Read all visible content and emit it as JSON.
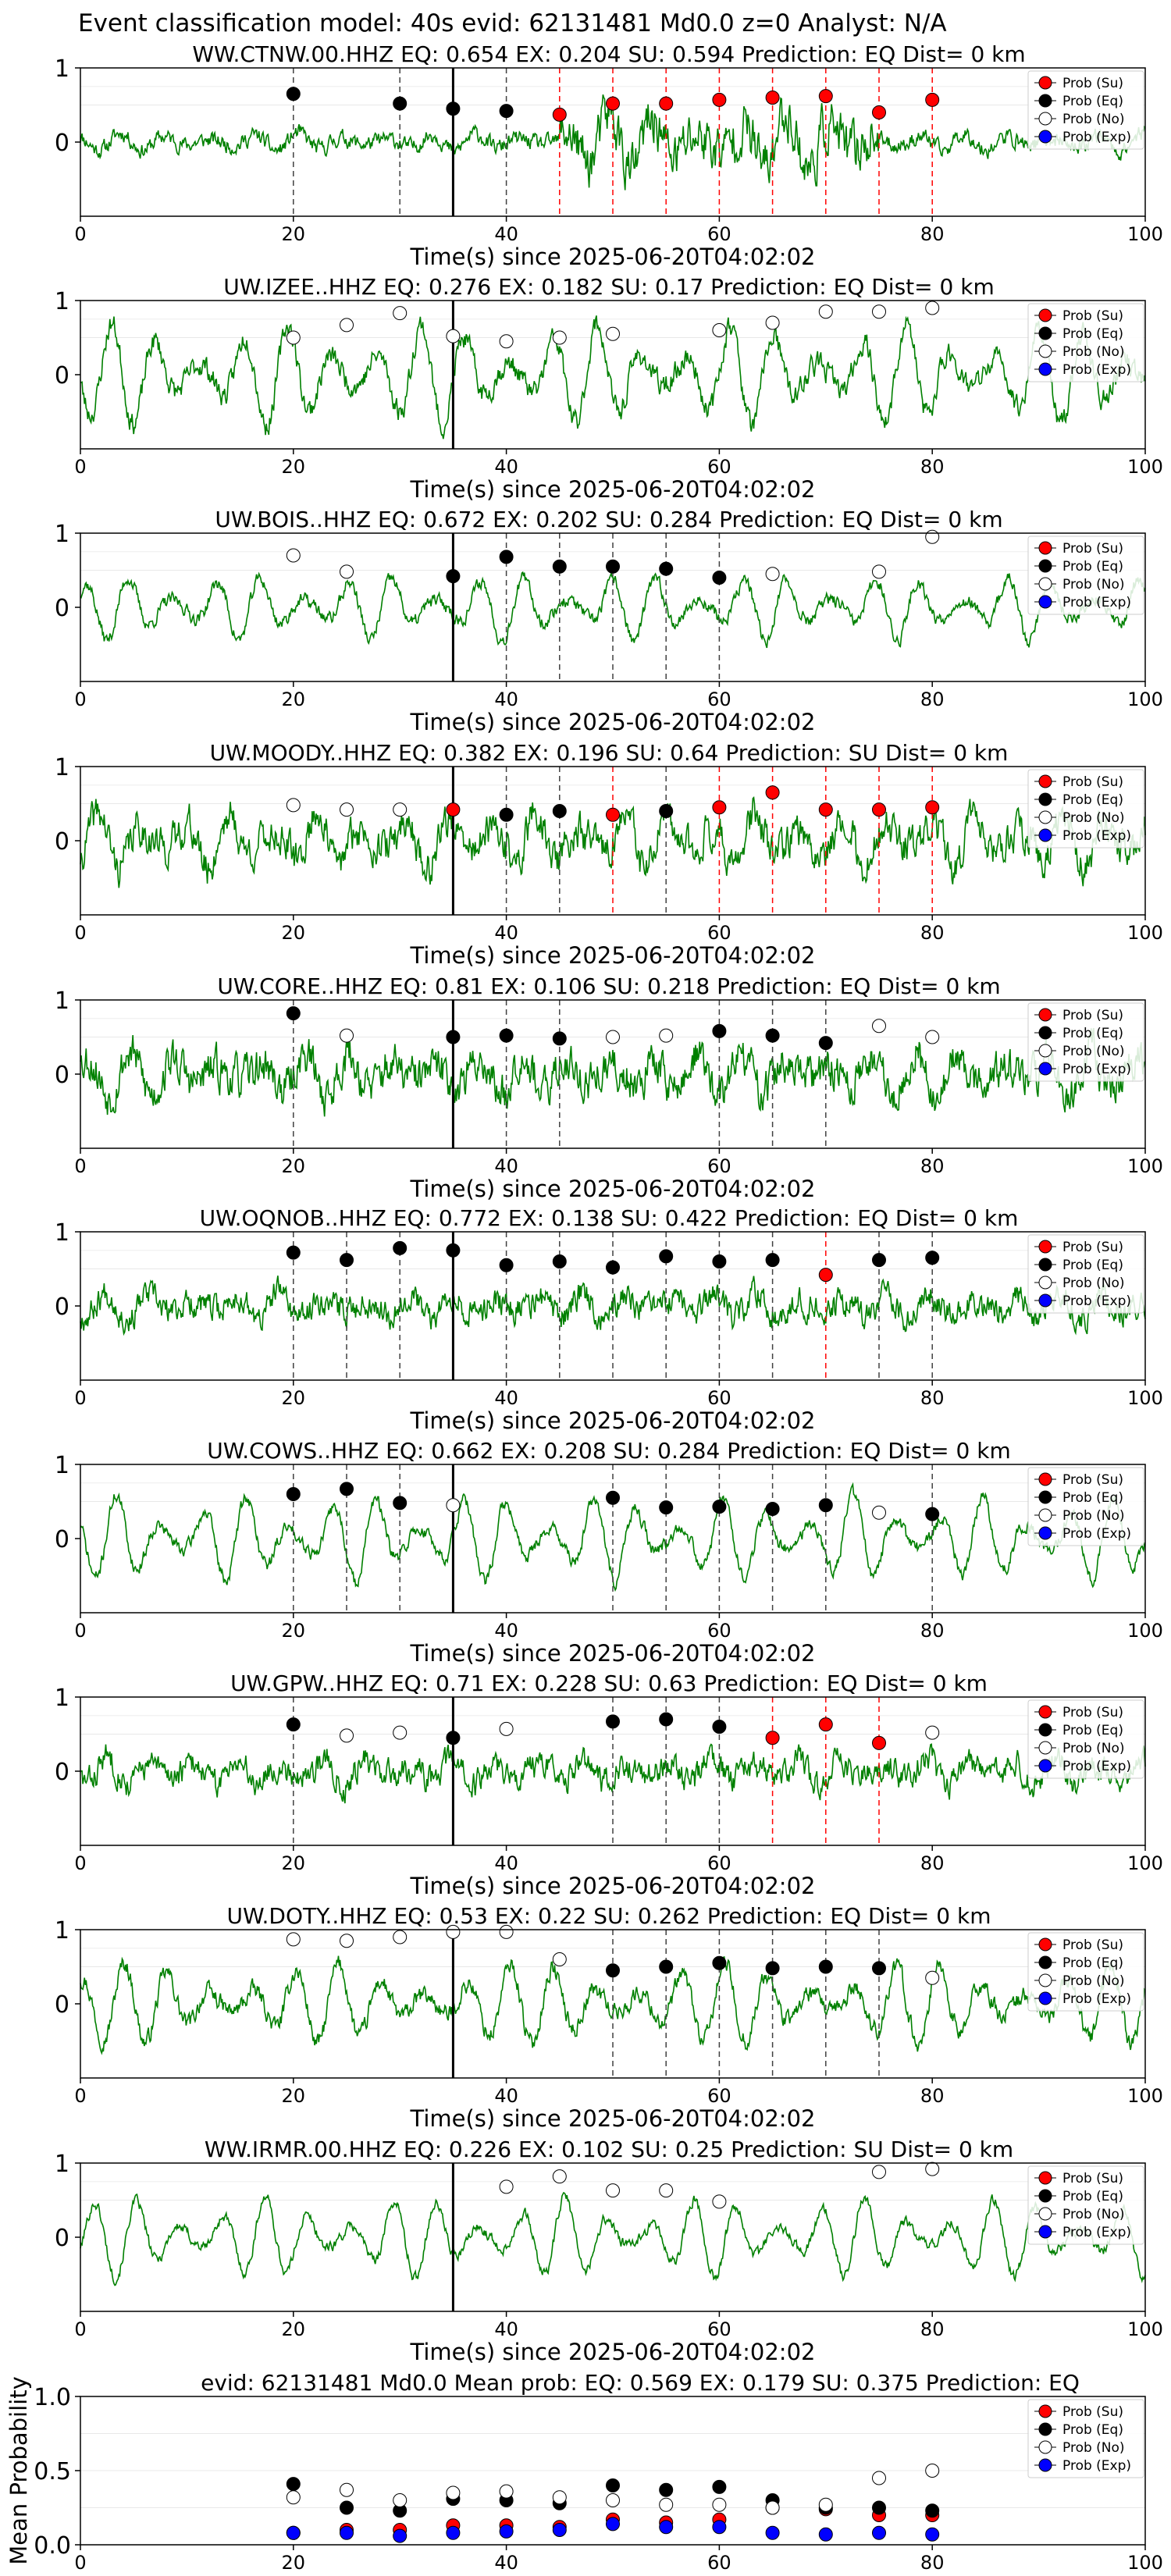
{
  "suptitle": "Event classification model: 40s evid: 62131481 Md0.0 z=0 Analyst: N/A",
  "x_label": "Time(s) since 2025-06-20T04:02:02",
  "x_ticks": [
    "0",
    "20",
    "40",
    "60",
    "80",
    "100"
  ],
  "y_ticks": [
    "0",
    "1"
  ],
  "legend": [
    "Prob (Su)",
    "Prob (Eq)",
    "Prob (No)",
    "Prob (Exp)"
  ],
  "colors": {
    "su": "#ff0000",
    "eq": "#000000",
    "no": "#ffffff",
    "exp": "#0000ff",
    "waveform": "#008000",
    "su_line": "#ff0000",
    "eq_line": "#404040"
  },
  "chart_data": [
    {
      "type": "line",
      "title": "WW.CTNW.00.HHZ   EQ: 0.654  EX: 0.204  SU: 0.594   Prediction: EQ    Dist= 0 km",
      "xlim": [
        0,
        100
      ],
      "ylim": [
        -1,
        1
      ],
      "pick_time": 35,
      "seed": 11,
      "amp": 0.25,
      "noise": 0.35,
      "points": [
        {
          "x": 20,
          "y": 0.65,
          "class": "eq"
        },
        {
          "x": 30,
          "y": 0.52,
          "class": "eq"
        },
        {
          "x": 35,
          "y": 0.45,
          "class": "eq"
        },
        {
          "x": 40,
          "y": 0.42,
          "class": "eq"
        },
        {
          "x": 45,
          "y": 0.37,
          "class": "su"
        },
        {
          "x": 50,
          "y": 0.52,
          "class": "su"
        },
        {
          "x": 55,
          "y": 0.52,
          "class": "su"
        },
        {
          "x": 60,
          "y": 0.57,
          "class": "su"
        },
        {
          "x": 65,
          "y": 0.6,
          "class": "su"
        },
        {
          "x": 70,
          "y": 0.62,
          "class": "su"
        },
        {
          "x": 75,
          "y": 0.4,
          "class": "su"
        },
        {
          "x": 80,
          "y": 0.57,
          "class": "su"
        }
      ]
    },
    {
      "type": "line",
      "title": "UW.IZEE..HHZ   EQ: 0.276  EX: 0.182  SU: 0.17   Prediction: EQ    Dist= 0 km",
      "xlim": [
        0,
        100
      ],
      "ylim": [
        -1,
        1
      ],
      "pick_time": 35,
      "seed": 23,
      "amp": 0.7,
      "noise": 0.25,
      "points": [
        {
          "x": 20,
          "y": 0.5,
          "class": "no"
        },
        {
          "x": 25,
          "y": 0.67,
          "class": "no"
        },
        {
          "x": 30,
          "y": 0.83,
          "class": "no"
        },
        {
          "x": 35,
          "y": 0.52,
          "class": "no"
        },
        {
          "x": 40,
          "y": 0.45,
          "class": "no"
        },
        {
          "x": 45,
          "y": 0.5,
          "class": "no"
        },
        {
          "x": 50,
          "y": 0.55,
          "class": "no"
        },
        {
          "x": 60,
          "y": 0.6,
          "class": "no"
        },
        {
          "x": 65,
          "y": 0.7,
          "class": "no"
        },
        {
          "x": 70,
          "y": 0.85,
          "class": "no"
        },
        {
          "x": 75,
          "y": 0.85,
          "class": "no"
        },
        {
          "x": 80,
          "y": 0.9,
          "class": "no"
        }
      ]
    },
    {
      "type": "line",
      "title": "UW.BOIS..HHZ   EQ: 0.672  EX: 0.202  SU: 0.284   Prediction: EQ    Dist= 0 km",
      "xlim": [
        0,
        100
      ],
      "ylim": [
        -1,
        1
      ],
      "pick_time": 35,
      "seed": 37,
      "amp": 0.45,
      "noise": 0.15,
      "points": [
        {
          "x": 20,
          "y": 0.7,
          "class": "no"
        },
        {
          "x": 25,
          "y": 0.48,
          "class": "no"
        },
        {
          "x": 35,
          "y": 0.42,
          "class": "eq"
        },
        {
          "x": 40,
          "y": 0.68,
          "class": "eq"
        },
        {
          "x": 45,
          "y": 0.55,
          "class": "eq"
        },
        {
          "x": 50,
          "y": 0.55,
          "class": "eq"
        },
        {
          "x": 55,
          "y": 0.52,
          "class": "eq"
        },
        {
          "x": 60,
          "y": 0.4,
          "class": "eq"
        },
        {
          "x": 65,
          "y": 0.45,
          "class": "no"
        },
        {
          "x": 75,
          "y": 0.48,
          "class": "no"
        },
        {
          "x": 80,
          "y": 0.95,
          "class": "no"
        }
      ]
    },
    {
      "type": "line",
      "title": "UW.MOODY..HHZ   EQ: 0.382  EX: 0.196  SU: 0.64   Prediction: SU    Dist= 0 km",
      "xlim": [
        0,
        100
      ],
      "ylim": [
        -1,
        1
      ],
      "pick_time": 35,
      "seed": 41,
      "amp": 0.4,
      "noise": 0.4,
      "points": [
        {
          "x": 20,
          "y": 0.48,
          "class": "no"
        },
        {
          "x": 25,
          "y": 0.42,
          "class": "no"
        },
        {
          "x": 30,
          "y": 0.42,
          "class": "no"
        },
        {
          "x": 35,
          "y": 0.42,
          "class": "su"
        },
        {
          "x": 40,
          "y": 0.35,
          "class": "eq"
        },
        {
          "x": 45,
          "y": 0.4,
          "class": "eq"
        },
        {
          "x": 50,
          "y": 0.35,
          "class": "su"
        },
        {
          "x": 55,
          "y": 0.4,
          "class": "eq"
        },
        {
          "x": 60,
          "y": 0.45,
          "class": "su"
        },
        {
          "x": 65,
          "y": 0.65,
          "class": "su"
        },
        {
          "x": 70,
          "y": 0.42,
          "class": "su"
        },
        {
          "x": 75,
          "y": 0.42,
          "class": "su"
        },
        {
          "x": 80,
          "y": 0.45,
          "class": "su"
        }
      ]
    },
    {
      "type": "line",
      "title": "UW.CORE..HHZ   EQ: 0.81  EX: 0.106  SU: 0.218   Prediction: EQ    Dist= 0 km",
      "xlim": [
        0,
        100
      ],
      "ylim": [
        -1,
        1
      ],
      "pick_time": 35,
      "seed": 53,
      "amp": 0.3,
      "noise": 0.45,
      "points": [
        {
          "x": 20,
          "y": 0.82,
          "class": "eq"
        },
        {
          "x": 25,
          "y": 0.52,
          "class": "no"
        },
        {
          "x": 35,
          "y": 0.5,
          "class": "eq"
        },
        {
          "x": 40,
          "y": 0.52,
          "class": "eq"
        },
        {
          "x": 45,
          "y": 0.48,
          "class": "eq"
        },
        {
          "x": 50,
          "y": 0.5,
          "class": "no"
        },
        {
          "x": 55,
          "y": 0.52,
          "class": "no"
        },
        {
          "x": 60,
          "y": 0.58,
          "class": "eq"
        },
        {
          "x": 65,
          "y": 0.52,
          "class": "eq"
        },
        {
          "x": 70,
          "y": 0.42,
          "class": "eq"
        },
        {
          "x": 75,
          "y": 0.65,
          "class": "no"
        },
        {
          "x": 80,
          "y": 0.5,
          "class": "no"
        }
      ]
    },
    {
      "type": "line",
      "title": "UW.OQNOB..HHZ   EQ: 0.772  EX: 0.138  SU: 0.422   Prediction: EQ    Dist= 0 km",
      "xlim": [
        0,
        100
      ],
      "ylim": [
        -1,
        1
      ],
      "pick_time": 35,
      "seed": 67,
      "amp": 0.2,
      "noise": 0.3,
      "points": [
        {
          "x": 20,
          "y": 0.72,
          "class": "eq"
        },
        {
          "x": 25,
          "y": 0.62,
          "class": "eq"
        },
        {
          "x": 30,
          "y": 0.78,
          "class": "eq"
        },
        {
          "x": 35,
          "y": 0.75,
          "class": "eq"
        },
        {
          "x": 40,
          "y": 0.55,
          "class": "eq"
        },
        {
          "x": 45,
          "y": 0.6,
          "class": "eq"
        },
        {
          "x": 50,
          "y": 0.52,
          "class": "eq"
        },
        {
          "x": 55,
          "y": 0.67,
          "class": "eq"
        },
        {
          "x": 60,
          "y": 0.6,
          "class": "eq"
        },
        {
          "x": 65,
          "y": 0.62,
          "class": "eq"
        },
        {
          "x": 70,
          "y": 0.42,
          "class": "su"
        },
        {
          "x": 75,
          "y": 0.62,
          "class": "eq"
        },
        {
          "x": 80,
          "y": 0.65,
          "class": "eq"
        }
      ]
    },
    {
      "type": "line",
      "title": "UW.COWS..HHZ   EQ: 0.662  EX: 0.208  SU: 0.284   Prediction: EQ    Dist= 0 km",
      "xlim": [
        0,
        100
      ],
      "ylim": [
        -1,
        1
      ],
      "pick_time": 35,
      "seed": 71,
      "amp": 0.6,
      "noise": 0.15,
      "points": [
        {
          "x": 20,
          "y": 0.6,
          "class": "eq"
        },
        {
          "x": 25,
          "y": 0.67,
          "class": "eq"
        },
        {
          "x": 30,
          "y": 0.48,
          "class": "eq"
        },
        {
          "x": 35,
          "y": 0.45,
          "class": "no"
        },
        {
          "x": 50,
          "y": 0.55,
          "class": "eq"
        },
        {
          "x": 55,
          "y": 0.42,
          "class": "eq"
        },
        {
          "x": 60,
          "y": 0.43,
          "class": "eq"
        },
        {
          "x": 65,
          "y": 0.4,
          "class": "eq"
        },
        {
          "x": 70,
          "y": 0.45,
          "class": "eq"
        },
        {
          "x": 75,
          "y": 0.35,
          "class": "no"
        },
        {
          "x": 80,
          "y": 0.33,
          "class": "eq"
        }
      ]
    },
    {
      "type": "line",
      "title": "UW.GPW..HHZ   EQ: 0.71  EX: 0.228  SU: 0.63   Prediction: EQ    Dist= 0 km",
      "xlim": [
        0,
        100
      ],
      "ylim": [
        -1,
        1
      ],
      "pick_time": 35,
      "seed": 83,
      "amp": 0.2,
      "noise": 0.3,
      "points": [
        {
          "x": 20,
          "y": 0.63,
          "class": "eq"
        },
        {
          "x": 25,
          "y": 0.48,
          "class": "no"
        },
        {
          "x": 30,
          "y": 0.52,
          "class": "no"
        },
        {
          "x": 35,
          "y": 0.45,
          "class": "eq"
        },
        {
          "x": 40,
          "y": 0.57,
          "class": "no"
        },
        {
          "x": 50,
          "y": 0.67,
          "class": "eq"
        },
        {
          "x": 55,
          "y": 0.7,
          "class": "eq"
        },
        {
          "x": 60,
          "y": 0.6,
          "class": "eq"
        },
        {
          "x": 65,
          "y": 0.45,
          "class": "su"
        },
        {
          "x": 70,
          "y": 0.63,
          "class": "su"
        },
        {
          "x": 75,
          "y": 0.38,
          "class": "su"
        },
        {
          "x": 80,
          "y": 0.52,
          "class": "no"
        }
      ]
    },
    {
      "type": "line",
      "title": "UW.DOTY..HHZ   EQ: 0.53  EX: 0.22  SU: 0.262   Prediction: EQ    Dist= 0 km",
      "xlim": [
        0,
        100
      ],
      "ylim": [
        -1,
        1
      ],
      "pick_time": 35,
      "seed": 97,
      "amp": 0.55,
      "noise": 0.2,
      "points": [
        {
          "x": 20,
          "y": 0.87,
          "class": "no"
        },
        {
          "x": 25,
          "y": 0.85,
          "class": "no"
        },
        {
          "x": 30,
          "y": 0.9,
          "class": "no"
        },
        {
          "x": 35,
          "y": 0.97,
          "class": "no"
        },
        {
          "x": 40,
          "y": 0.97,
          "class": "no"
        },
        {
          "x": 45,
          "y": 0.6,
          "class": "no"
        },
        {
          "x": 50,
          "y": 0.45,
          "class": "eq"
        },
        {
          "x": 55,
          "y": 0.5,
          "class": "eq"
        },
        {
          "x": 60,
          "y": 0.55,
          "class": "eq"
        },
        {
          "x": 65,
          "y": 0.48,
          "class": "eq"
        },
        {
          "x": 70,
          "y": 0.5,
          "class": "eq"
        },
        {
          "x": 75,
          "y": 0.48,
          "class": "eq"
        },
        {
          "x": 80,
          "y": 0.35,
          "class": "no"
        }
      ]
    },
    {
      "type": "line",
      "title": "WW.IRMR.00.HHZ   EQ: 0.226  EX: 0.102  SU: 0.25   Prediction: SU    Dist= 0 km",
      "xlim": [
        0,
        100
      ],
      "ylim": [
        -1,
        1
      ],
      "pick_time": 35,
      "seed": 101,
      "amp": 0.55,
      "noise": 0.12,
      "points": [
        {
          "x": 40,
          "y": 0.68,
          "class": "no"
        },
        {
          "x": 45,
          "y": 0.82,
          "class": "no"
        },
        {
          "x": 50,
          "y": 0.63,
          "class": "no"
        },
        {
          "x": 55,
          "y": 0.63,
          "class": "no"
        },
        {
          "x": 60,
          "y": 0.48,
          "class": "no"
        },
        {
          "x": 75,
          "y": 0.88,
          "class": "no"
        },
        {
          "x": 80,
          "y": 0.92,
          "class": "no"
        }
      ]
    },
    {
      "type": "scatter",
      "title": "evid: 62131481  Md0.0   Mean prob:   EQ: 0.569  EX: 0.179  SU: 0.375   Prediction: EQ",
      "ylabel": "Mean Probability",
      "xlim": [
        0,
        100
      ],
      "ylim": [
        0,
        1
      ],
      "y_ticks": [
        "0.0",
        "0.5",
        "1.0"
      ],
      "x": [
        20,
        25,
        30,
        35,
        40,
        45,
        50,
        55,
        60,
        65,
        70,
        75,
        80
      ],
      "series": [
        {
          "name": "Prob (Su)",
          "class": "su",
          "values": [
            0.08,
            0.1,
            0.1,
            0.13,
            0.13,
            0.12,
            0.17,
            0.15,
            0.17,
            0.25,
            0.24,
            0.2,
            0.2
          ]
        },
        {
          "name": "Prob (Eq)",
          "class": "eq",
          "values": [
            0.41,
            0.25,
            0.23,
            0.31,
            0.3,
            0.28,
            0.4,
            0.37,
            0.39,
            0.3,
            0.25,
            0.25,
            0.23
          ]
        },
        {
          "name": "Prob (No)",
          "class": "no",
          "values": [
            0.32,
            0.37,
            0.3,
            0.35,
            0.36,
            0.32,
            0.3,
            0.27,
            0.27,
            0.25,
            0.27,
            0.45,
            0.5
          ]
        },
        {
          "name": "Prob (Exp)",
          "class": "exp",
          "values": [
            0.08,
            0.08,
            0.06,
            0.08,
            0.09,
            0.1,
            0.14,
            0.12,
            0.12,
            0.08,
            0.07,
            0.08,
            0.07
          ]
        }
      ]
    }
  ]
}
